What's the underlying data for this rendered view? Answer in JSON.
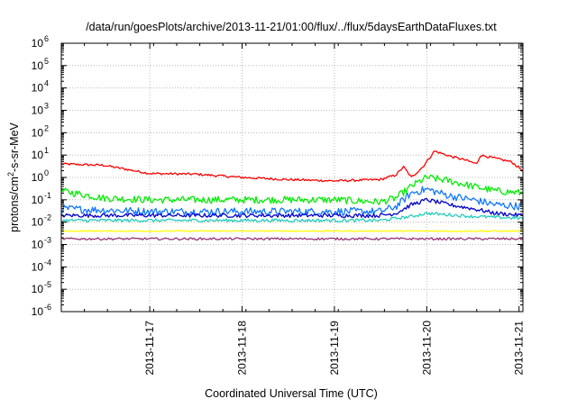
{
  "chart_data": {
    "type": "line",
    "title": "/data/run/goesPlots/archive/2013-11-21/01:00/flux/../flux/5daysEarthDataFluxes.txt",
    "xlabel": "Coordinated Universal Time (UTC)",
    "ylabel": {
      "prefix": "protons/cm",
      "sup": "2",
      "suffix": "-s-sr-MeV"
    },
    "y_scale": "log",
    "ylim": [
      1e-06,
      1000000.0
    ],
    "y_ticks": [
      {
        "value": 1e-06,
        "base": "10",
        "exp": "-6"
      },
      {
        "value": 1e-05,
        "base": "10",
        "exp": "-5"
      },
      {
        "value": 0.0001,
        "base": "10",
        "exp": "-4"
      },
      {
        "value": 0.001,
        "base": "10",
        "exp": "-3"
      },
      {
        "value": 0.01,
        "base": "10",
        "exp": "-2"
      },
      {
        "value": 0.1,
        "base": "10",
        "exp": "-1"
      },
      {
        "value": 1.0,
        "base": "10",
        "exp": "0"
      },
      {
        "value": 10.0,
        "base": "10",
        "exp": "1"
      },
      {
        "value": 100.0,
        "base": "10",
        "exp": "2"
      },
      {
        "value": 1000.0,
        "base": "10",
        "exp": "3"
      },
      {
        "value": 10000.0,
        "base": "10",
        "exp": "4"
      },
      {
        "value": 100000.0,
        "base": "10",
        "exp": "5"
      },
      {
        "value": 1000000.0,
        "base": "10",
        "exp": "6"
      }
    ],
    "xlim": [
      "2013-11-16 01:00",
      "2013-11-21 01:00"
    ],
    "x_ticks": [
      {
        "value": "2013-11-17 00:00",
        "label": "2013-11-17"
      },
      {
        "value": "2013-11-18 00:00",
        "label": "2013-11-18"
      },
      {
        "value": "2013-11-19 00:00",
        "label": "2013-11-19"
      },
      {
        "value": "2013-11-20 00:00",
        "label": "2013-11-20"
      },
      {
        "value": "2013-11-21 00:00",
        "label": "2013-11-21"
      }
    ],
    "grid": true,
    "grid_style": "dotted",
    "legend": "none",
    "series": [
      {
        "color": "#ff0000",
        "x": [
          "2013-11-16 01:00",
          "2013-11-16 12:00",
          "2013-11-17 00:00",
          "2013-11-17 12:00",
          "2013-11-18 00:00",
          "2013-11-18 12:00",
          "2013-11-19 00:00",
          "2013-11-19 12:00",
          "2013-11-19 16:00",
          "2013-11-19 18:00",
          "2013-11-19 20:00",
          "2013-11-19 23:00",
          "2013-11-20 02:00",
          "2013-11-20 06:00",
          "2013-11-20 10:00",
          "2013-11-20 13:00",
          "2013-11-20 14:00",
          "2013-11-20 18:00",
          "2013-11-20 22:00",
          "2013-11-21 01:00"
        ],
        "values": [
          4,
          3.5,
          1.5,
          1.4,
          1,
          0.8,
          0.7,
          0.8,
          1.3,
          3,
          1,
          3,
          15,
          9,
          6,
          4,
          10,
          7,
          5,
          2
        ]
      },
      {
        "color": "#00ee00",
        "x": [
          "2013-11-16 01:00",
          "2013-11-16 12:00",
          "2013-11-17 00:00",
          "2013-11-18 00:00",
          "2013-11-19 00:00",
          "2013-11-19 12:00",
          "2013-11-19 16:00",
          "2013-11-19 20:00",
          "2013-11-20 00:00",
          "2013-11-20 06:00",
          "2013-11-20 12:00",
          "2013-11-20 18:00",
          "2013-11-21 01:00"
        ],
        "values": [
          0.25,
          0.12,
          0.1,
          0.1,
          0.1,
          0.08,
          0.12,
          0.4,
          1.0,
          0.7,
          0.4,
          0.25,
          0.2
        ]
      },
      {
        "color": "#1177ff",
        "x": [
          "2013-11-16 01:00",
          "2013-11-17 00:00",
          "2013-11-18 00:00",
          "2013-11-19 00:00",
          "2013-11-19 12:00",
          "2013-11-19 16:00",
          "2013-11-19 20:00",
          "2013-11-20 00:00",
          "2013-11-20 06:00",
          "2013-11-20 12:00",
          "2013-11-20 18:00",
          "2013-11-21 01:00"
        ],
        "values": [
          0.04,
          0.03,
          0.03,
          0.03,
          0.03,
          0.05,
          0.2,
          0.3,
          0.15,
          0.1,
          0.06,
          0.05
        ]
      },
      {
        "color": "#0000cc",
        "x": [
          "2013-11-16 01:00",
          "2013-11-17 00:00",
          "2013-11-18 00:00",
          "2013-11-19 00:00",
          "2013-11-19 12:00",
          "2013-11-19 16:00",
          "2013-11-19 20:00",
          "2013-11-20 00:00",
          "2013-11-20 06:00",
          "2013-11-20 12:00",
          "2013-11-20 18:00",
          "2013-11-21 01:00"
        ],
        "values": [
          0.02,
          0.02,
          0.02,
          0.02,
          0.02,
          0.025,
          0.06,
          0.1,
          0.06,
          0.04,
          0.025,
          0.02
        ]
      },
      {
        "color": "#22ccbb",
        "x": [
          "2013-11-16 01:00",
          "2013-11-17 00:00",
          "2013-11-18 00:00",
          "2013-11-19 00:00",
          "2013-11-19 12:00",
          "2013-11-19 20:00",
          "2013-11-20 00:00",
          "2013-11-20 12:00",
          "2013-11-21 01:00"
        ],
        "values": [
          0.012,
          0.012,
          0.012,
          0.012,
          0.012,
          0.018,
          0.025,
          0.018,
          0.015
        ]
      },
      {
        "color": "#ffff00",
        "x": [
          "2013-11-16 01:00",
          "2013-11-17 00:00",
          "2013-11-18 00:00",
          "2013-11-19 00:00",
          "2013-11-20 00:00",
          "2013-11-21 01:00"
        ],
        "values": [
          0.004,
          0.004,
          0.004,
          0.004,
          0.004,
          0.004
        ]
      },
      {
        "color": "#993377",
        "x": [
          "2013-11-16 01:00",
          "2013-11-17 00:00",
          "2013-11-18 00:00",
          "2013-11-19 00:00",
          "2013-11-20 00:00",
          "2013-11-21 01:00"
        ],
        "values": [
          0.0018,
          0.0018,
          0.0018,
          0.0018,
          0.0018,
          0.0018
        ]
      }
    ]
  }
}
